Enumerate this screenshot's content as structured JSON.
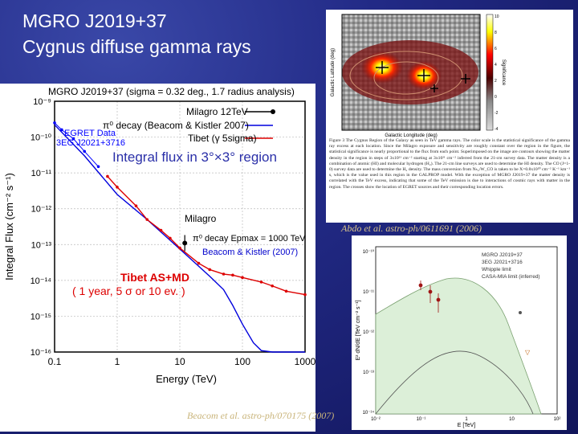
{
  "slide": {
    "title_line1": "MGRO J2019+37",
    "title_line2": "Cygnus diffuse gamma rays",
    "overlay_label": "Integral flux in 3°×3° region",
    "citation_abdo": "Abdo et al. astro-ph/0611691 (2006)",
    "citation_beacom": "Beacom et al. astro-ph/070175 (2007)"
  },
  "left_plot": {
    "title": "MGRO J2019+37 (sigma = 0.32 deg., 1.7 radius analysis)",
    "xlabel": "Energy (TeV)",
    "ylabel": "Integral Flux (cm⁻² s⁻¹)",
    "xticks": [
      "0.1",
      "1",
      "10",
      "100",
      "1000"
    ],
    "yticks": [
      "10⁻⁹",
      "10⁻¹⁰",
      "10⁻¹¹",
      "10⁻¹²",
      "10⁻¹³",
      "10⁻¹⁴",
      "10⁻¹⁵",
      "10⁻¹⁶"
    ],
    "legend": [
      "Milagro 12TeV",
      "π⁰ decay (Beacom & Kistler 2007)",
      "Tibet (γ 5sigma)"
    ],
    "label_egret": "EGRET Data",
    "label_3eg": "3EG J2021+3716",
    "label_milagro": "Milagro",
    "label_pi0": "π⁰ decay Epmax = 1000 TeV",
    "label_beacom": "Beacom & Kistler (2007)",
    "label_tibet": "Tibet AS+MD",
    "label_tibet2": "( 1 year, 5 σ or 10 ev. )",
    "colors": {
      "pi0": "#0000dd",
      "tibet": "#dd0000",
      "egret": "#0000ff",
      "axis": "#000000"
    }
  },
  "top_right": {
    "xlabel": "Galactic Longitude (deg)",
    "ylabel": "Galactic Latitude (deg)",
    "colorbar_label": "Significance",
    "caption": "Figure 3 The Cygnus Region of the Galaxy as seen in TeV gamma rays. The color scale is the statistical significance of the gamma ray excess at each location. Since the Milagro exposure and sensitivity are roughly constant over the region in the figure, the statistical significance is nearly proportional to the flux from each point. Superimposed on the image are contours showing the matter density in the region in steps of 3x10²¹ cm⁻² starting at 3x10²¹ cm⁻² inferred from the 21-cm survey data. The matter density is a combination of atomic (HI) and molecular hydrogen (H₂). The 21-cm line surveys are used to determine the HI density. The CO (J=1-0) survey data are used to determine the H₂ density. The mass conversion from Nₕ₂/W_CO is taken to be X=0.8x10²⁰ cm⁻² K⁻¹ km⁻¹ s, which is the value used in this region in the GALPROP model. With the exception of MGRO J2019+37 the matter density is correlated with the TeV excess, indicating that some of the TeV emission is due to interactions of cosmic rays with matter in the region. The crosses show the location of EGRET sources and their corresponding location errors.",
    "colorbar_ticks": [
      "10",
      "8",
      "6",
      "4",
      "2",
      "0",
      "-2",
      "-4"
    ]
  },
  "bottom_right": {
    "xlabel": "E [TeV]",
    "ylabel": "E² dN/dE [TeV cm⁻² s⁻¹]",
    "legend": [
      "MGRO J2019+37",
      "3EG J2021+3716",
      "Whipple limit",
      "CASA-MIA limit (inferred)"
    ],
    "xticks": [
      "10⁻²",
      "10⁻¹",
      "1",
      "10",
      "10²"
    ],
    "yticks": [
      "10⁻¹⁰",
      "10⁻¹¹",
      "10⁻¹²",
      "10⁻¹³",
      "10⁻¹⁴"
    ]
  },
  "chart_data": {
    "type": "line",
    "title": "MGRO J2019+37 (sigma = 0.32 deg., 1.7 radius analysis)",
    "xlabel": "Energy (TeV)",
    "ylabel": "Integral Flux (cm⁻² s⁻¹)",
    "xscale": "log",
    "yscale": "log",
    "xlim": [
      0.1,
      1000
    ],
    "ylim": [
      1e-16,
      1e-09
    ],
    "series": [
      {
        "name": "π⁰ decay (Beacom & Kistler 2007)",
        "x": [
          0.1,
          0.3,
          1,
          3,
          10,
          30,
          50,
          70,
          100,
          150,
          200,
          300,
          1000
        ],
        "y": [
          2.2e-10,
          3e-11,
          2.5e-12,
          5e-13,
          7.5e-14,
          1.3e-14,
          5.5e-15,
          2e-15,
          6e-16,
          1.8e-16,
          1.1e-16,
          1e-16,
          1e-16
        ]
      },
      {
        "name": "Tibet (γ 5sigma)",
        "x": [
          0.7,
          1,
          2,
          3,
          5,
          7,
          10,
          20,
          30,
          50,
          70,
          100,
          200,
          300,
          500,
          1000
        ],
        "y": [
          8e-12,
          4e-12,
          1.2e-12,
          5e-13,
          2.5e-13,
          1.5e-13,
          8e-14,
          3e-14,
          2e-14,
          1.5e-14,
          1.4e-14,
          1.2e-14,
          9e-15,
          7e-15,
          5e-15,
          4e-15
        ]
      },
      {
        "name": "Milagro 12TeV",
        "x": [
          12
        ],
        "y": [
          1.1e-13
        ]
      },
      {
        "name": "EGRET Data",
        "x": [
          0.1,
          0.13,
          0.2,
          0.3,
          0.5
        ],
        "y": [
          2.5e-10,
          1.6e-10,
          9e-11,
          4e-11,
          1.5e-11
        ]
      }
    ]
  }
}
